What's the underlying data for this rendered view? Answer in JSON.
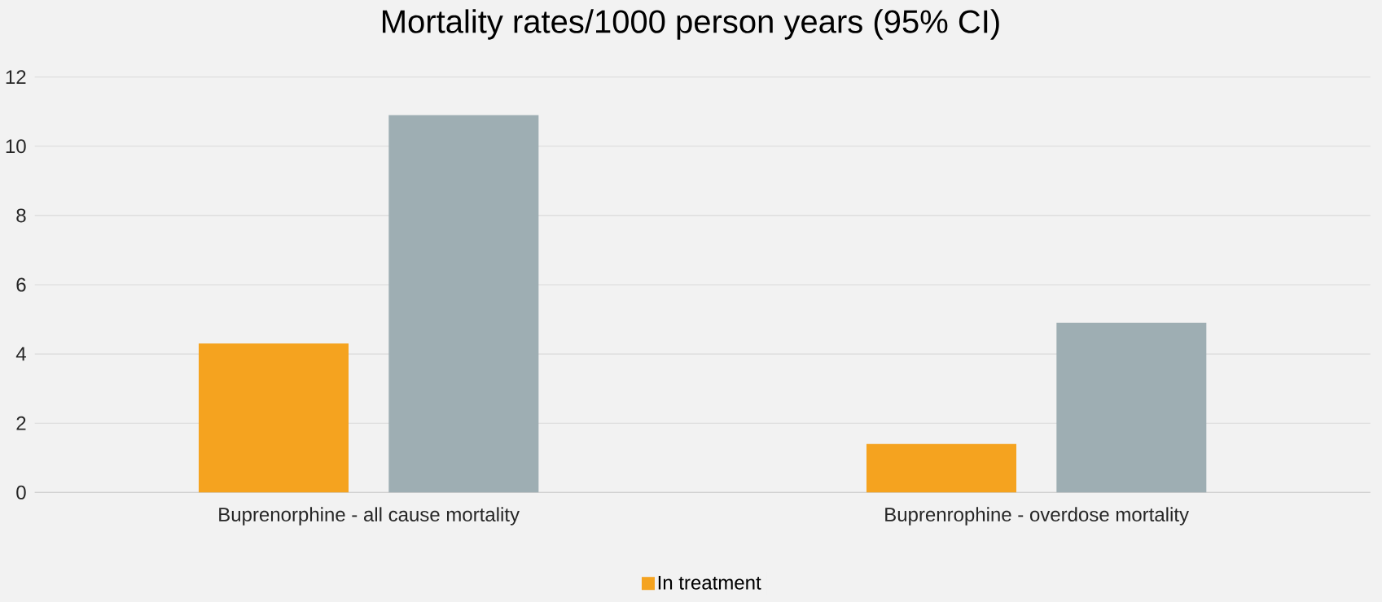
{
  "chart_data": {
    "type": "bar",
    "title": "Mortality rates/1000 person years (95% CI)",
    "categories": [
      "Buprenorphine - all cause mortality",
      "Buprenrophine - overdose mortality"
    ],
    "series": [
      {
        "name": "In treatment",
        "color": "#f5a31f",
        "values": [
          4.3,
          1.4
        ]
      },
      {
        "color": "#9eaeb3",
        "values": [
          10.9,
          4.9
        ]
      }
    ],
    "ylim": [
      0,
      12
    ],
    "yticks": [
      0,
      2,
      4,
      6,
      8,
      10,
      12
    ],
    "grid": "y",
    "legend": "bottom"
  }
}
